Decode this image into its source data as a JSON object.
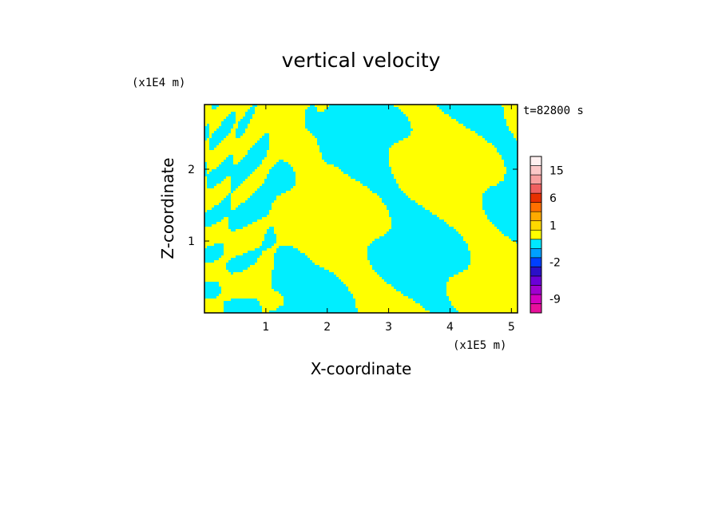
{
  "chart_data": {
    "type": "heatmap",
    "title": "vertical velocity",
    "xlabel": "X-coordinate",
    "ylabel": "Z-coordinate",
    "x_unit": "(x1E5 m)",
    "y_unit": "(x1E4 m)",
    "time_label": "t=82800 s",
    "xlim": [
      0,
      5.1
    ],
    "ylim": [
      0,
      2.9
    ],
    "x_ticks": [
      1,
      2,
      3,
      4,
      5
    ],
    "y_ticks": [
      1,
      2
    ],
    "x_tick_labels": [
      "1",
      "2",
      "3",
      "4",
      "5"
    ],
    "y_tick_labels": [
      "1",
      "2"
    ],
    "colorbar": {
      "tick_labels": [
        "15",
        "6",
        "1",
        "-2",
        "-9"
      ],
      "tick_values": [
        15,
        6,
        1,
        -2,
        -9
      ],
      "levels": [
        {
          "value": -12,
          "color": "#e8109c"
        },
        {
          "value": -9,
          "color": "#d400c0"
        },
        {
          "value": -6,
          "color": "#a000d0"
        },
        {
          "value": -4,
          "color": "#6a00d8"
        },
        {
          "value": -3,
          "color": "#2a10c8"
        },
        {
          "value": -2,
          "color": "#0040ff"
        },
        {
          "value": -1,
          "color": "#00a0ff"
        },
        {
          "value": 0,
          "color": "#00e8ff"
        },
        {
          "value": 0.5,
          "color": "#ffff00"
        },
        {
          "value": 1,
          "color": "#ffd800"
        },
        {
          "value": 2,
          "color": "#ffaa00"
        },
        {
          "value": 4,
          "color": "#ff7000"
        },
        {
          "value": 6,
          "color": "#e83000"
        },
        {
          "value": 9,
          "color": "#f06060"
        },
        {
          "value": 12,
          "color": "#f8a0a0"
        },
        {
          "value": 15,
          "color": "#fcc8c8"
        },
        {
          "value": 20,
          "color": "#fff0f0"
        }
      ]
    },
    "field_colors": {
      "positive": "#ffff00",
      "negative": "#00eeff"
    }
  }
}
